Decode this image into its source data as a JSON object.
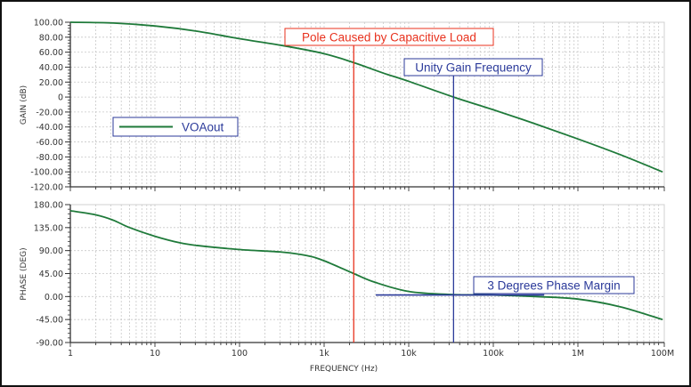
{
  "colors": {
    "curve": "#1f7a3a",
    "pole_line": "#e8321e",
    "unity_line": "#2b3a9a",
    "grid": "#c8c8c8",
    "axis": "#333333"
  },
  "chart_data": [
    {
      "type": "line",
      "panel": "gain",
      "ylabel": "GAIN (dB)",
      "xscale": "log",
      "ylim": [
        -120,
        100
      ],
      "yticks": [
        "100.00",
        "80.00",
        "60.00",
        "40.00",
        "20.00",
        "0",
        "-20.00",
        "-40.00",
        "-60.00",
        "-80.00",
        "-100.00",
        "-120.00"
      ],
      "ytick_values": [
        100,
        80,
        60,
        40,
        20,
        0,
        -20,
        -40,
        -60,
        -80,
        -100,
        -120
      ],
      "grid": true,
      "legend": {
        "position": "left-middle",
        "entries": [
          "VOAout"
        ]
      },
      "series": [
        {
          "name": "VOAout",
          "decade": [
            0,
            0.5,
            1,
            1.5,
            2,
            2.5,
            3,
            3.35,
            3.7,
            4,
            4.53,
            5,
            5.5,
            6,
            6.5,
            7
          ],
          "values": [
            100,
            99,
            95,
            88,
            78,
            69,
            58,
            46,
            32,
            21,
            0,
            -17,
            -36,
            -56,
            -77,
            -100
          ]
        }
      ],
      "annotations": [
        {
          "text": "Pole Caused by Capacitive Load",
          "decade": 3.35,
          "color": "#e8321e"
        },
        {
          "text": "Unity Gain Frequency",
          "decade": 4.53,
          "color": "#2b3a9a"
        }
      ]
    },
    {
      "type": "line",
      "panel": "phase",
      "ylabel": "PHASE (DEG)",
      "xlabel": "FREQUENCY (Hz)",
      "xscale": "log",
      "ylim": [
        -90,
        180
      ],
      "yticks": [
        "180.00",
        "135.00",
        "90.00",
        "45.00",
        "0.00",
        "-45.00",
        "-90.00"
      ],
      "ytick_values": [
        180,
        135,
        90,
        45,
        0,
        -45,
        -90
      ],
      "xticks": [
        "1",
        "10",
        "100",
        "1k",
        "10k",
        "100k",
        "1M",
        "100M"
      ],
      "grid": true,
      "series": [
        {
          "name": "VOAout",
          "decade": [
            0,
            0.3,
            0.5,
            0.7,
            1,
            1.3,
            1.5,
            2,
            2.5,
            2.8,
            3,
            3.35,
            3.6,
            4,
            4.5,
            5,
            5.5,
            6,
            6.5,
            7
          ],
          "values": [
            168,
            160,
            150,
            135,
            118,
            105,
            100,
            92,
            87,
            80,
            70,
            45,
            28,
            10,
            4,
            3,
            0,
            -5,
            -20,
            -45
          ]
        }
      ],
      "annotations": [
        {
          "text": "3 Degrees Phase Margin",
          "value_deg": 3,
          "color": "#2b3a9a"
        }
      ]
    }
  ]
}
